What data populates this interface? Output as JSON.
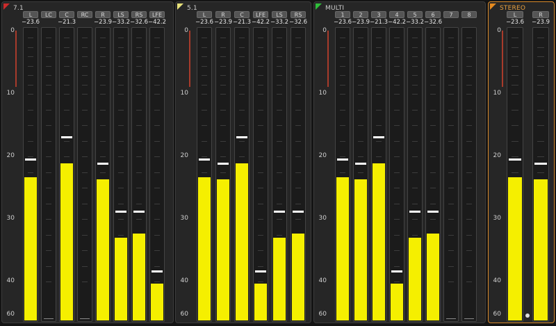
{
  "colors": {
    "meter": "#f5ef00",
    "peak": "#ffffff",
    "selected_border": "#d98a2a"
  },
  "scale_labels": [
    "0",
    "10",
    "20",
    "30",
    "40",
    "60"
  ],
  "panels": [
    {
      "title": "7.1",
      "corner_color": "#cc2b2b",
      "selected": false,
      "channels": [
        {
          "label": "L",
          "value": "−23.6",
          "level": -23.6,
          "peak": -20.3
        },
        {
          "label": "LC",
          "value": "",
          "level": null,
          "peak": null
        },
        {
          "label": "C",
          "value": "−21.3",
          "level": -21.3,
          "peak": -16.8
        },
        {
          "label": "RC",
          "value": "",
          "level": null,
          "peak": null
        },
        {
          "label": "R",
          "value": "−23.9",
          "level": -23.9,
          "peak": -21.0
        },
        {
          "label": "LS",
          "value": "−33.2",
          "level": -33.2,
          "peak": -28.7
        },
        {
          "label": "RS",
          "value": "−32.6",
          "level": -32.6,
          "peak": -28.7
        },
        {
          "label": "LFE",
          "value": "−42.2",
          "level": -42.2,
          "peak": -38.2
        }
      ]
    },
    {
      "title": "5.1",
      "corner_color": "#e8e27a",
      "selected": false,
      "channels": [
        {
          "label": "L",
          "value": "−23.6",
          "level": -23.6,
          "peak": -20.3
        },
        {
          "label": "R",
          "value": "−23.9",
          "level": -23.9,
          "peak": -21.0
        },
        {
          "label": "C",
          "value": "−21.3",
          "level": -21.3,
          "peak": -16.8
        },
        {
          "label": "LFE",
          "value": "−42.2",
          "level": -42.2,
          "peak": -38.2
        },
        {
          "label": "LS",
          "value": "−33.2",
          "level": -33.2,
          "peak": -28.7
        },
        {
          "label": "RS",
          "value": "−32.6",
          "level": -32.6,
          "peak": -28.7
        }
      ]
    },
    {
      "title": "MULTI",
      "corner_color": "#2fbf3a",
      "selected": false,
      "channels": [
        {
          "label": "1",
          "value": "−23.6",
          "level": -23.6,
          "peak": -20.3
        },
        {
          "label": "2",
          "value": "−23.9",
          "level": -23.9,
          "peak": -21.0
        },
        {
          "label": "3",
          "value": "−21.3",
          "level": -21.3,
          "peak": -16.8
        },
        {
          "label": "4",
          "value": "−42.2",
          "level": -42.2,
          "peak": -38.2
        },
        {
          "label": "5",
          "value": "−33.2",
          "level": -33.2,
          "peak": -28.7
        },
        {
          "label": "6",
          "value": "−32.6",
          "level": -32.6,
          "peak": -28.7
        },
        {
          "label": "7",
          "value": "",
          "level": null,
          "peak": null
        },
        {
          "label": "8",
          "value": "",
          "level": null,
          "peak": null
        }
      ]
    },
    {
      "title": "STEREO",
      "corner_color": "#e58a1f",
      "selected": true,
      "channels": [
        {
          "label": "L",
          "value": "−23.6",
          "level": -23.6,
          "peak": -20.3
        },
        {
          "label": "R",
          "value": "−23.9",
          "level": -23.9,
          "peak": -21.0
        }
      ]
    }
  ]
}
